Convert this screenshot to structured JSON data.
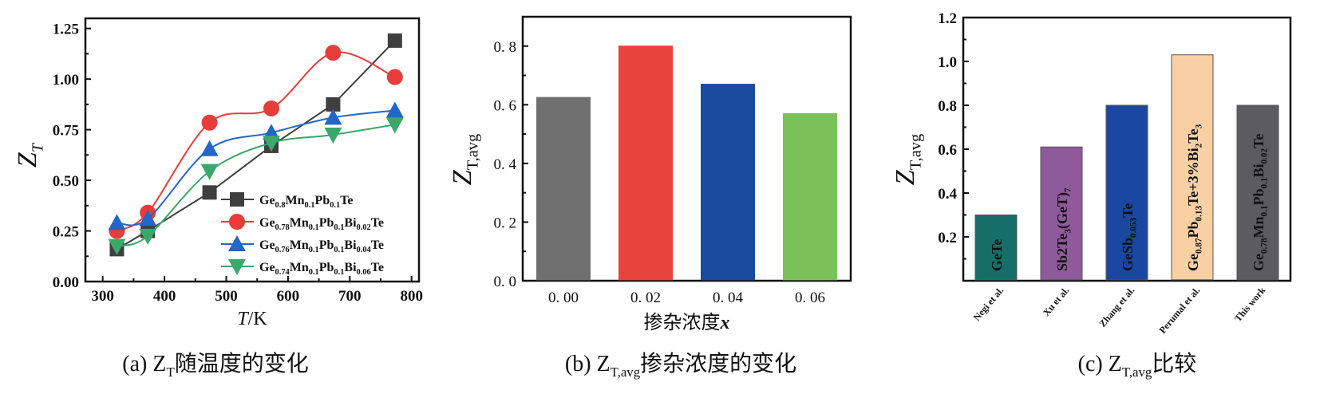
{
  "chart_data": [
    {
      "id": "a",
      "type": "line",
      "caption": "(a) Z_{T}随温度的变化",
      "xlabel": "T/K",
      "ylabel": "Z_{T}",
      "xlim": [
        272,
        812
      ],
      "ylim": [
        0,
        1.3
      ],
      "xticks": [
        300,
        400,
        500,
        600,
        700,
        800
      ],
      "yticks": [
        0,
        0.25,
        0.5,
        0.75,
        1.0,
        1.25
      ],
      "ytick_labels": [
        "0.00",
        "0.25",
        "0.50",
        "0.75",
        "1.00",
        "1.25"
      ],
      "legend_position": "bottom-right",
      "x": [
        323,
        373,
        473,
        573,
        673,
        773
      ],
      "series": [
        {
          "name": "Ge_{0.8}Mn_{0.1}Pb_{0.1}Te",
          "marker": "square",
          "color": "#3f3f3f",
          "smooth": false,
          "values": [
            0.16,
            0.25,
            0.44,
            0.67,
            0.875,
            1.19
          ]
        },
        {
          "name": "Ge_{0.78}Mn_{0.1}Pb_{0.1}Bi_{0.02}Te",
          "marker": "circle",
          "color": "#e63d3a",
          "smooth": true,
          "values": [
            0.25,
            0.34,
            0.785,
            0.855,
            1.13,
            1.01
          ]
        },
        {
          "name": "Ge_{0.76}Mn_{0.1}Pb_{0.1}Bi_{0.04}Te",
          "marker": "triangle-up",
          "color": "#2166c8",
          "smooth": true,
          "values": [
            0.29,
            0.31,
            0.655,
            0.735,
            0.81,
            0.845
          ]
        },
        {
          "name": "Ge_{0.74}Mn_{0.1}Pb_{0.1}Bi_{0.06}Te",
          "marker": "triangle-down",
          "color": "#3aa86a",
          "smooth": true,
          "values": [
            0.175,
            0.225,
            0.545,
            0.685,
            0.725,
            0.775
          ]
        }
      ]
    },
    {
      "id": "b",
      "type": "bar",
      "caption": "(b) Z_{T,avg}掺杂浓度的变化",
      "xlabel": "掺杂浓度x",
      "ylabel": "Z_{T,avg}",
      "ylim": [
        0,
        0.9
      ],
      "yticks": [
        0,
        0.2,
        0.4,
        0.6,
        0.8
      ],
      "ytick_labels": [
        "0. 0",
        "0. 2",
        "0. 4",
        "0. 6",
        "0. 8"
      ],
      "categories": [
        "0. 00",
        "0. 02",
        "0. 04",
        "0. 06"
      ],
      "values": [
        0.625,
        0.8,
        0.67,
        0.57
      ],
      "colors": [
        "#707070",
        "#e6433b",
        "#1a4a9e",
        "#7cc05a"
      ]
    },
    {
      "id": "c",
      "type": "bar",
      "caption": "(c) Z_{T,avg}比较",
      "ylabel": "Z_{T,avg}",
      "ylim": [
        0,
        1.2
      ],
      "yticks": [
        0.2,
        0.4,
        0.6,
        0.8,
        1.0,
        1.2
      ],
      "ytick_labels": [
        "0.2",
        "0.4",
        "0.6",
        "0.8",
        "1.0",
        "1.2"
      ],
      "categories": [
        "Negi et al.",
        "Xu et al.",
        "Zhang et al.",
        "Perumal et al.",
        "This work"
      ],
      "category_colors": [
        "#111111",
        "#111111",
        "#111111",
        "#111111",
        "#c8141e"
      ],
      "bar_labels": [
        "GeTe",
        "Sb2Te_{3}(GeT)_{7}",
        "GeSb_{0.053}Te",
        "Ge_{0.87}Pb_{0.13}Te+3%Bi_{2}Te_{3}",
        "Ge_{0.78}Mn_{0.1}Pb_{0.1}Bi_{0.02}Te"
      ],
      "values": [
        0.3,
        0.61,
        0.8,
        1.03,
        0.8
      ],
      "colors": [
        "#156e68",
        "#8e5a9a",
        "#1a48a0",
        "#f8d0a4",
        "#5c5c5e"
      ]
    }
  ]
}
